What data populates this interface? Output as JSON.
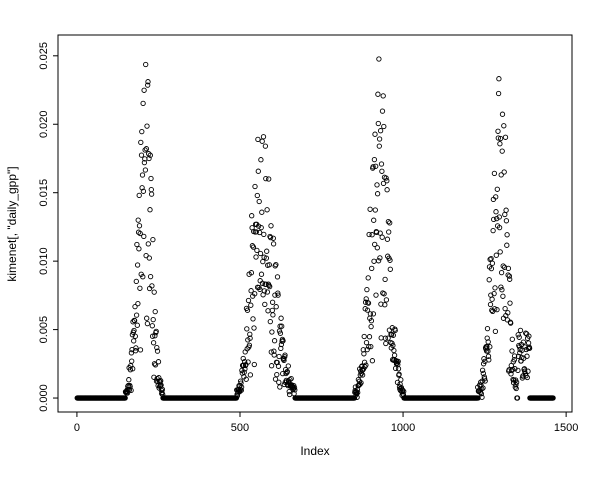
{
  "figure": {
    "background": "#ffffff",
    "foreground": "#000000"
  },
  "chart_data": {
    "type": "scatter",
    "title": "",
    "xlabel": "Index",
    "ylabel": "kimenet[, \"daily_gpp\"]",
    "xlim": [
      -58,
      1518
    ],
    "ylim": [
      -0.00102,
      0.02652
    ],
    "x_ticks": [
      0,
      500,
      1000,
      1500
    ],
    "x_tick_labels": [
      "0",
      "500",
      "1000",
      "1500"
    ],
    "y_ticks": [
      0,
      0.005,
      0.01,
      0.015,
      0.02,
      0.025
    ],
    "y_tick_labels": [
      "0.000",
      "0.005",
      "0.010",
      "0.015",
      "0.020",
      "0.025"
    ],
    "grid": false,
    "legend": "none",
    "marker": "open-circle",
    "marker_color": "#000000",
    "n_points": 1460,
    "x_range_data": [
      1,
      1460
    ],
    "baseline_value": 0.0,
    "description": "Daily GPP time series: long runs of exact zeros (dormant season) forming a solid band at y=0, interrupted by four growing-season peaks with wide vertical scatter.",
    "seasonal_peaks": [
      {
        "center": 210,
        "amplitude": 0.0255,
        "rise_sigma": 22,
        "fall_sigma": 19,
        "window": [
          138,
          278
        ]
      },
      {
        "center": 560,
        "amplitude": 0.0205,
        "rise_sigma": 26,
        "fall_sigma": 42,
        "window": [
          482,
          668
        ]
      },
      {
        "center": 930,
        "amplitude": 0.0255,
        "rise_sigma": 28,
        "fall_sigma": 26,
        "window": [
          845,
          1002
        ]
      },
      {
        "center": 1300,
        "amplitude": 0.0245,
        "rise_sigma": 26,
        "fall_sigma": 20,
        "window": [
          1212,
          1348
        ]
      }
    ],
    "late_cluster": {
      "window": [
        1352,
        1388
      ],
      "amplitude": 0.004
    },
    "seed": 7
  }
}
